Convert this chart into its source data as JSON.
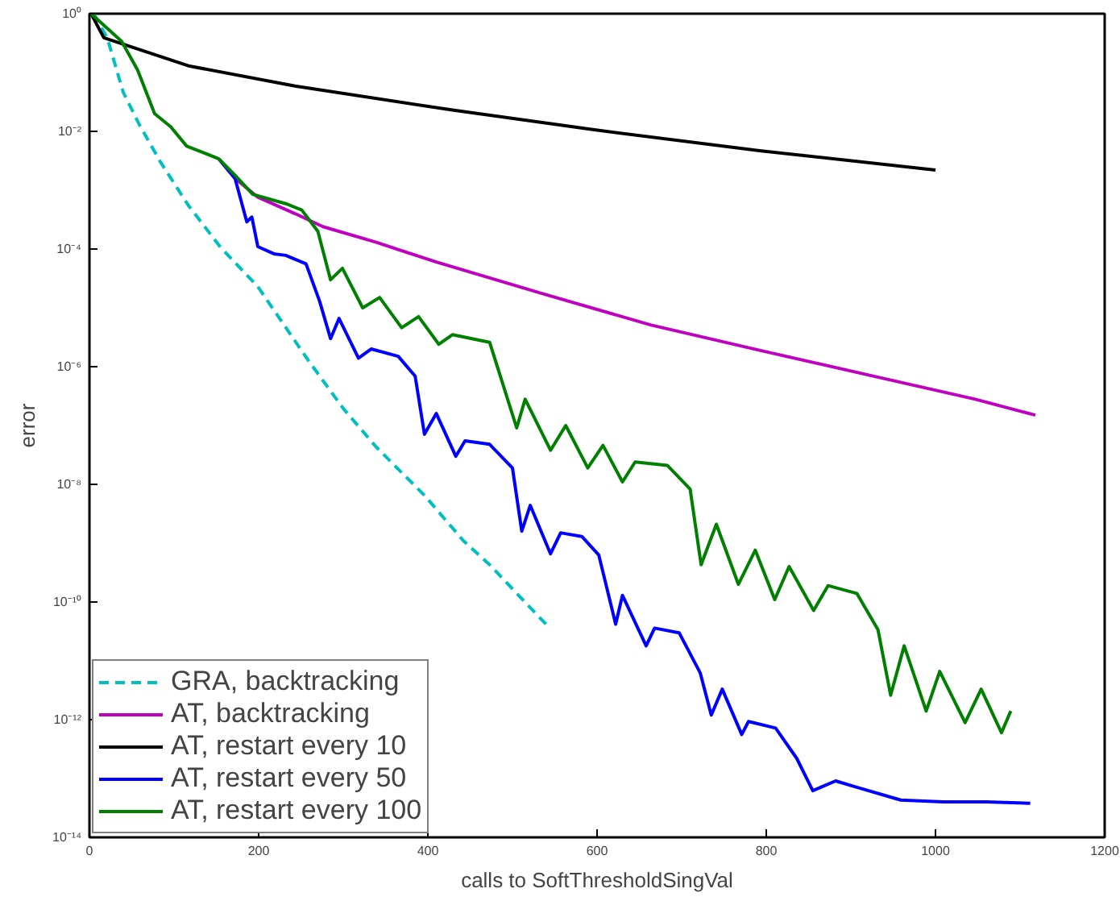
{
  "chart_data": {
    "type": "line",
    "xlabel": "calls to SoftThresholdSingVal",
    "ylabel": "error",
    "log": "y",
    "grid": false,
    "legend": "bottom left",
    "marker": "none",
    "xlim": [
      0,
      1200
    ],
    "xticks": [
      0,
      200,
      400,
      600,
      800,
      1000,
      1200
    ],
    "ylim": [
      1e-14,
      1
    ],
    "yticks": [
      {
        "value": 1,
        "label": "10⁰"
      },
      {
        "value": 0.01,
        "label": "10⁻²"
      },
      {
        "value": 0.0001,
        "label": "10⁻⁴"
      },
      {
        "value": 1e-06,
        "label": "10⁻⁶"
      },
      {
        "value": 1e-08,
        "label": "10⁻⁸"
      },
      {
        "value": 1e-10,
        "label": "10⁻¹⁰"
      },
      {
        "value": 1e-12,
        "label": "10⁻¹²"
      },
      {
        "value": 1e-14,
        "label": "10⁻¹⁴"
      }
    ],
    "series": [
      {
        "name": "GRA, backtracking",
        "color": "#00bfbf",
        "line_style": "dashed",
        "x": [
          5,
          21,
          40,
          59,
          84,
          117,
          155,
          199,
          259,
          300,
          339,
          396,
          442,
          473,
          544
        ],
        "values": [
          1,
          0.39,
          0.046,
          0.013,
          0.003,
          0.00055,
          0.000107,
          2.3e-05,
          1.26e-06,
          1.95e-07,
          4.3e-08,
          6.5e-09,
          1.1e-09,
          4.3e-10,
          3.6e-11
        ]
      },
      {
        "name": "AT, backtracking",
        "color": "#bf00bf",
        "line_style": "solid",
        "x": [
          153,
          172,
          199,
          243,
          276,
          339,
          410,
          538,
          664,
          792,
          921,
          1047,
          1118
        ],
        "values": [
          0.0034,
          0.0016,
          0.00076,
          0.0004,
          0.00024,
          0.00013,
          6e-05,
          1.7e-05,
          5.1e-06,
          1.9e-06,
          7.2e-07,
          2.8e-07,
          1.5e-07
        ]
      },
      {
        "name": "AT, restart every 10",
        "color": "#000000",
        "line_style": "solid",
        "x": [
          2,
          17,
          117,
          243,
          429,
          595,
          792,
          1000
        ],
        "values": [
          1,
          0.39,
          0.13,
          0.059,
          0.023,
          0.0107,
          0.0047,
          0.0022
        ]
      },
      {
        "name": "AT, restart every 50",
        "color": "#0000ff",
        "line_style": "solid",
        "x": [
          153,
          172,
          186,
          192,
          199,
          218,
          232,
          256,
          272,
          285,
          295,
          318,
          333,
          365,
          385,
          396,
          410,
          433,
          444,
          473,
          500,
          511,
          521,
          545,
          557,
          582,
          602,
          622,
          630,
          658,
          668,
          697,
          722,
          735,
          748,
          771,
          779,
          811,
          836,
          855,
          882,
          907,
          959,
          1009,
          1060,
          1112
        ],
        "values": [
          0.0034,
          0.0016,
          0.00029,
          0.00035,
          0.00011,
          8.3e-05,
          7.8e-05,
          5.6e-05,
          1.3e-05,
          3e-06,
          6.6e-06,
          1.4e-06,
          2e-06,
          1.5e-06,
          6.9e-07,
          7.1e-08,
          1.6e-07,
          3e-08,
          5.5e-08,
          4.8e-08,
          1.9e-08,
          1.6e-09,
          4.4e-09,
          6.6e-10,
          1.5e-09,
          1.3e-09,
          6.3e-10,
          4.2e-11,
          1.3e-10,
          1.8e-11,
          3.6e-11,
          3e-11,
          6.2e-12,
          1.2e-12,
          3.3e-12,
          5.6e-13,
          9.3e-13,
          7.2e-13,
          2.2e-13,
          6.2e-14,
          9.1e-14,
          7.1e-14,
          4.3e-14,
          4e-14,
          4e-14,
          3.8e-14
        ]
      },
      {
        "name": "AT, restart every 100",
        "color": "#008000",
        "line_style": "solid",
        "x": [
          2,
          38,
          57,
          77,
          96,
          115,
          134,
          153,
          172,
          193,
          232,
          251,
          270,
          285,
          299,
          323,
          343,
          369,
          389,
          413,
          429,
          473,
          505,
          515,
          545,
          563,
          589,
          607,
          630,
          645,
          683,
          710,
          723,
          741,
          767,
          787,
          810,
          827,
          856,
          873,
          907,
          932,
          947,
          963,
          989,
          1005,
          1035,
          1054,
          1078,
          1089
        ],
        "values": [
          1,
          0.34,
          0.11,
          0.02,
          0.012,
          0.0056,
          0.0044,
          0.0034,
          0.0018,
          0.00085,
          0.00059,
          0.00046,
          0.0002,
          3e-05,
          4.7e-05,
          1e-05,
          1.5e-05,
          4.6e-06,
          7.1e-06,
          2.4e-06,
          3.5e-06,
          2.6e-06,
          9.1e-08,
          2.8e-07,
          3.8e-08,
          1e-07,
          1.9e-08,
          4.6e-08,
          1.1e-08,
          2.4e-08,
          2.1e-08,
          8.3e-09,
          4.3e-10,
          2.1e-09,
          2e-10,
          7.6e-10,
          1.1e-10,
          4e-10,
          7.2e-11,
          1.9e-10,
          1.4e-10,
          3.4e-11,
          2.6e-12,
          1.8e-11,
          1.4e-12,
          6.6e-12,
          8.9e-13,
          3.3e-12,
          6e-13,
          1.4e-12
        ]
      }
    ]
  }
}
